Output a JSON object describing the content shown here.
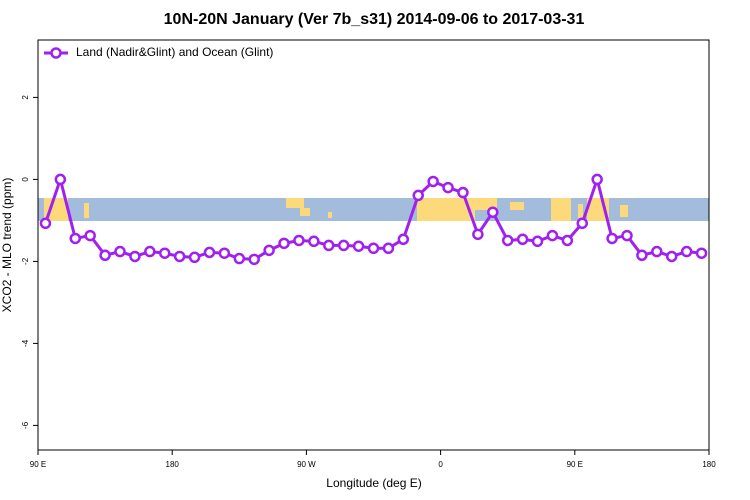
{
  "chart_data": {
    "type": "line",
    "title": "10N-20N January (Ver 7b_s31)   2014-09-06 to 2017-03-31",
    "x_label": "Longitude (deg E)",
    "y_label": "XCO2 - MLO trend (ppm)",
    "legend_position": "top-left",
    "x": [
      95,
      105,
      115,
      125,
      135,
      145,
      155,
      165,
      175,
      185,
      195,
      205,
      215,
      225,
      235,
      245,
      255,
      265,
      275,
      285,
      295,
      305,
      315,
      325,
      335,
      345,
      355,
      365,
      375,
      385,
      395,
      405,
      415,
      425,
      435,
      445,
      455,
      465,
      475,
      485,
      495,
      505,
      515,
      525,
      535
    ],
    "series": [
      {
        "name": "Land (Nadir&Glint) and Ocean (Glint)",
        "color": "#a020f0",
        "values": [
          -1.07,
          0,
          -1.44,
          -1.37,
          -1.85,
          -1.76,
          -1.88,
          -1.76,
          -1.8,
          -1.88,
          -1.9,
          -1.78,
          -1.8,
          -1.93,
          -1.95,
          -1.73,
          -1.56,
          -1.49,
          -1.51,
          -1.61,
          -1.61,
          -1.63,
          -1.68,
          -1.68,
          -1.46,
          -0.39,
          -0.05,
          -0.2,
          -0.32,
          -1.34,
          -0.8,
          -1.49,
          -1.46,
          -1.51,
          -1.37,
          -1.49,
          -1.07,
          0,
          -1.44,
          -1.37,
          -1.85,
          -1.76,
          -1.88,
          -1.76,
          -1.8
        ]
      }
    ],
    "xlim": [
      90,
      540
    ],
    "xticks": [
      {
        "value": 90,
        "label": "90 E"
      },
      180,
      {
        "value": 270,
        "label": "90 W"
      },
      {
        "value": 360,
        "label": "0"
      },
      {
        "value": 450,
        "label": "90 E"
      },
      {
        "value": 540,
        "label": "180"
      }
    ],
    "ylim": [
      -6.6,
      3.4
    ],
    "yticks": [
      -6,
      -4,
      -2,
      0,
      2
    ]
  }
}
